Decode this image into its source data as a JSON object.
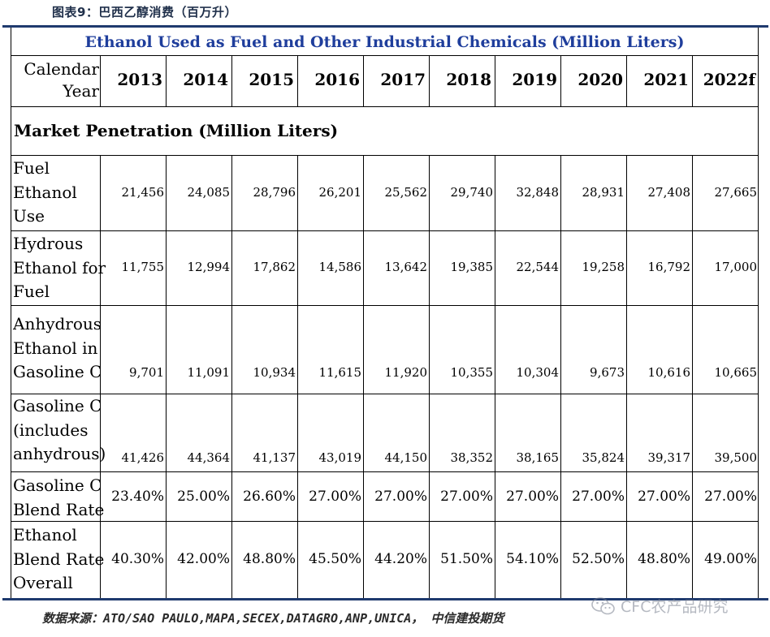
{
  "caption": "图表9：巴西乙醇消费（百万升）",
  "table": {
    "title": "Ethanol Used as Fuel and Other Industrial Chemicals (Million Liters)",
    "year_label_line1": "Calendar",
    "year_label_line2": "Year",
    "years": [
      "2013",
      "2014",
      "2015",
      "2016",
      "2017",
      "2018",
      "2019",
      "2020",
      "2021",
      "2022f"
    ],
    "section": "Market Penetration (Million Liters)",
    "rows": [
      {
        "label": [
          "Fuel",
          "Ethanol",
          "Use"
        ],
        "values": [
          "21,456",
          "24,085",
          "28,796",
          "26,201",
          "25,562",
          "29,740",
          "32,848",
          "28,931",
          "27,408",
          "27,665"
        ]
      },
      {
        "label": [
          "Hydrous",
          "Ethanol for",
          "Fuel"
        ],
        "values": [
          "11,755",
          "12,994",
          "17,862",
          "14,586",
          "13,642",
          "19,385",
          "22,544",
          "19,258",
          "16,792",
          "17,000"
        ]
      },
      {
        "label": [
          "Anhydrous",
          "Ethanol in",
          "Gasoline C"
        ],
        "values": [
          "9,701",
          "11,091",
          "10,934",
          "11,615",
          "11,920",
          "10,355",
          "10,304",
          "9,673",
          "10,616",
          "10,665"
        ]
      },
      {
        "label": [
          "Gasoline C",
          "(includes",
          "anhydrous)"
        ],
        "values": [
          "41,426",
          "44,364",
          "41,137",
          "43,019",
          "44,150",
          "38,352",
          "38,165",
          "35,824",
          "39,317",
          "39,500"
        ]
      },
      {
        "label": [
          "Gasoline C",
          "Blend Rate"
        ],
        "values": [
          "23.40%",
          "25.00%",
          "26.60%",
          "27.00%",
          "27.00%",
          "27.00%",
          "27.00%",
          "27.00%",
          "27.00%",
          "27.00%"
        ]
      },
      {
        "label": [
          "Ethanol",
          "Blend Rate",
          "Overall"
        ],
        "values": [
          "40.30%",
          "42.00%",
          "48.80%",
          "45.50%",
          "44.20%",
          "51.50%",
          "54.10%",
          "52.50%",
          "48.80%",
          "49.00%"
        ]
      }
    ]
  },
  "footer": "数据来源：ATO/SAO PAULO,MAPA,SECEX,DATAGRO,ANP,UNICA， 中信建投期货",
  "watermark": "CFC农产品研究"
}
